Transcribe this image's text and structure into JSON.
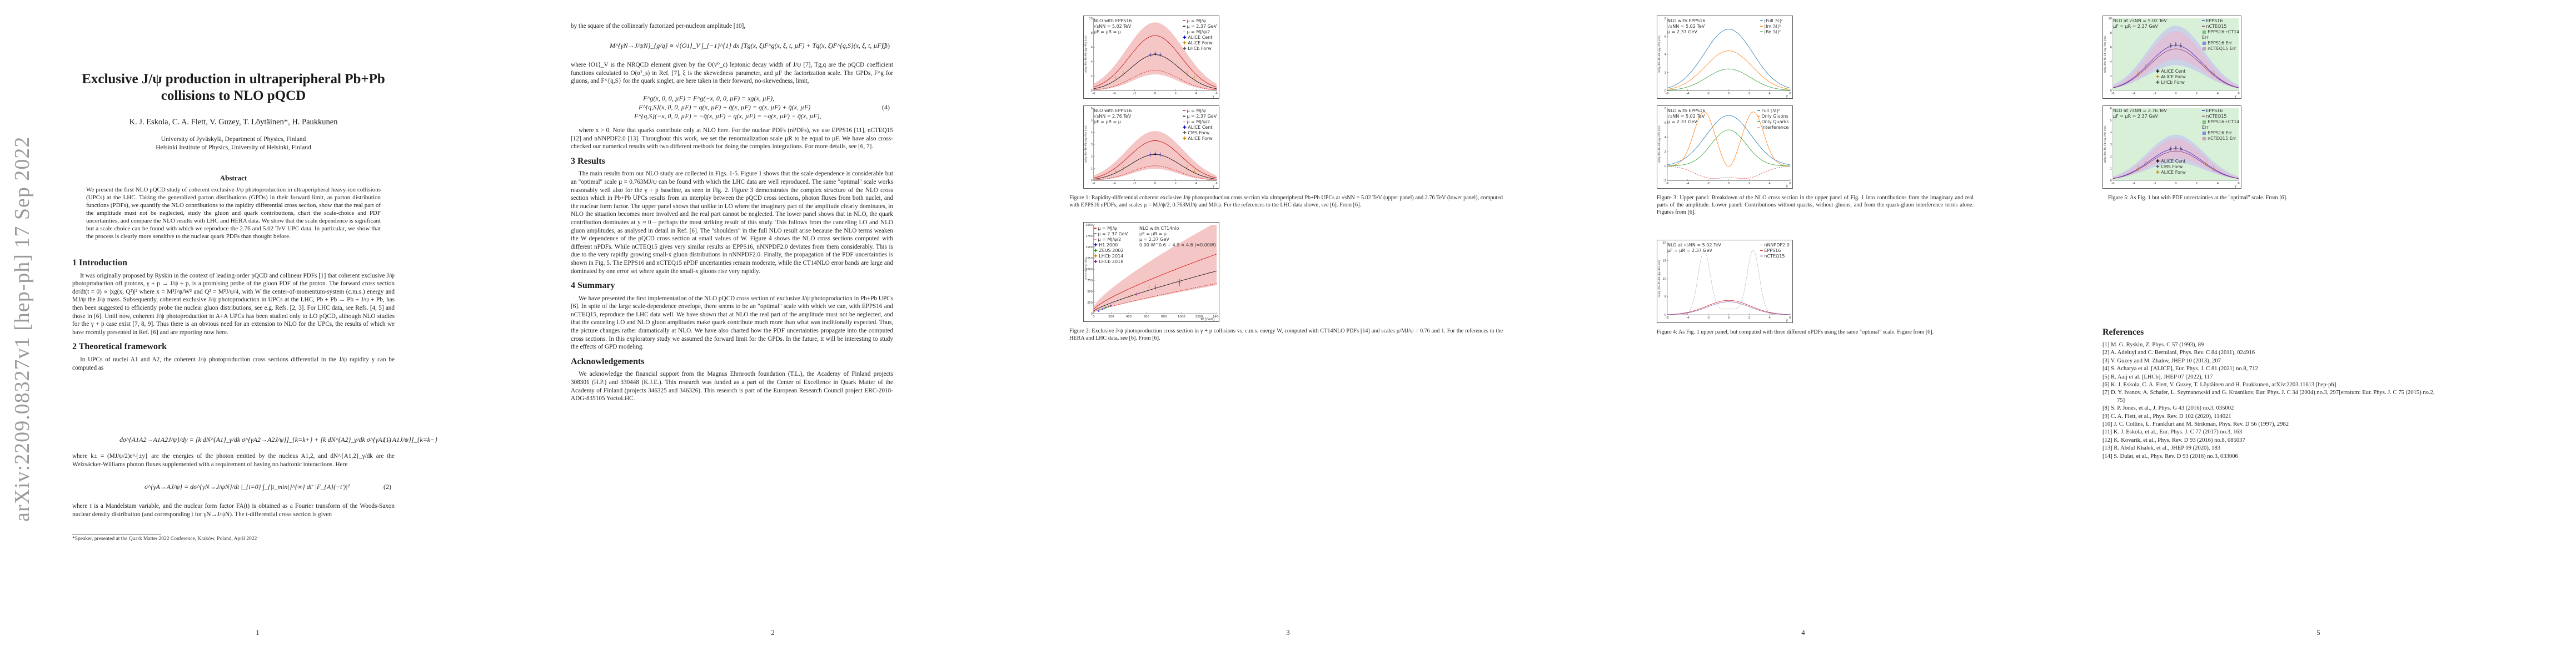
{
  "arxiv_stamp": "arXiv:2209.08327v1  [hep-ph]  17 Sep 2022",
  "page_numbers": [
    "1",
    "2",
    "3",
    "4",
    "5"
  ],
  "title": "Exclusive J/ψ production in ultraperipheral Pb+Pb collisions to NLO pQCD",
  "authors": "K. J. Eskola, C. A. Flett, V. Guzey, T. Löytäinen*, H. Paukkunen",
  "affiliation": [
    "University of Jyväskylä, Department of Physics, Finland",
    "Helsinki Institute of Physics, University of Helsinki, Finland"
  ],
  "abstract_heading": "Abstract",
  "abstract": "We present the first NLO pQCD study of coherent exclusive J/ψ photoproduction in ultraperipheral heavy-ion collisions (UPCs) at the LHC. Taking the generalized parton distributions (GPDs) in their forward limit, as parton distribution functions (PDFs), we quantify the NLO contributions to the rapidity differential cross section, show that the real part of the amplitude must not be neglected, study the gluon and quark contributions, chart the scale-choice and PDF uncertainties, and compare the NLO results with LHC and HERA data. We show that the scale dependence is significant but a scale choice can be found with which we reproduce the 2.76 and 5.02 TeV UPC data. In particular, we show that the process is clearly more sensitive to the nuclear quark PDFs than thought before.",
  "section1_heading": "1   Introduction",
  "section1_text": "It was originally proposed by Ryskin in the context of leading-order pQCD and collinear PDFs [1] that coherent exclusive J/ψ photoproduction off protons, γ + p → J/ψ + p, is a promising probe of the gluon PDF of the proton. The forward cross section dσ/dt(t = 0) ∝ |xg(x, Q²)|² where x = M²J/ψ/W² and Q² = M²J/ψ/4, with W the center-of-momentum-system (c.m.s.) energy and MJ/ψ the J/ψ mass. Subsequently, coherent exclusive J/ψ photoproduction in UPCs at the LHC, Pb + Pb → Pb + J/ψ + Pb, has then been suggested to efficiently probe the nuclear gluon distributions, see e.g. Refs. [2, 3]. For LHC data, see Refs. [4, 5] and those in [6]. Until now, coherent J/ψ photoproduction in A+A UPCs has been studied only to LO pQCD, although NLO studies for the γ + p case exist [7, 8, 9]. Thus there is an obvious need for an extension to NLO for the UPCs, the results of which we have recently presented in Ref. [6] and are reporting now here.",
  "section2_heading": "2   Theoretical framework",
  "section2_text1": "In UPCs of nuclei A1 and A2, the coherent J/ψ photoproduction cross sections differential in the J/ψ rapidity y can be computed as",
  "eq1": "dσ^{A1A2→A1A2J/ψ}/dy = [k dN^{A1}_γ/dk σ^{γA2→A2J/ψ}]_{k=k+} + [k dN^{A2}_γ/dk σ^{γA1→A1J/ψ}]_{k=k−}",
  "eq1_num": "(1)",
  "section2_text2": "where k± = (MJ/ψ/2)e^{±y} are the energies of the photon emitted by the nucleus A1,2, and dN^{A1,2}_γ/dk are the Weizsäcker-Williams photon fluxes supplemented with a requirement of having no hadronic interactions. Here",
  "eq2": "σ^{γA→AJ/ψ} = dσ^{γN→J/ψN}/dt |_{t=0} ∫_{|t_min|}^{∞} dt' |F_{A}(−t')|²",
  "eq2_num": "(2)",
  "section2_text3": "where t is a Mandelstam variable, and the nuclear form factor FA(t) is obtained as a Fourier transform of the Woods-Saxon nuclear density distribution (and corresponding t for γN→J/ψN). The t-differential cross section is given",
  "footnote": "*Speaker, presented at the Quark Matter 2022 Conference, Kraków, Poland, April 2022",
  "p2_text0": "by the square of the collinearly factorized per-nucleon amplitude [10],",
  "eq3": "M^{γN→J/ψN}_{g/q} ∝ √⟨O1⟩_V ∫_{−1}^{1} dx [Tg(x, ξ)F^g(x, ξ, t, µF) + Tq(x, ξ)F^{q,S}(x, ξ, t, µF)]",
  "eq3_num": "(3)",
  "p2_text1": "where ⟨O1⟩_V is the NRQCD element given by the O(v⁰_c) leptonic decay width of J/ψ [7], Tg,q are the pQCD coefficient functions calculated to O(α²_s) in Ref. [7], ξ is the skewedness parameter, and µF the factorization scale. The GPDs, F^g for gluons, and F^{q,S} for the quark singlet, are here taken in their forward, no-skewedness, limit,",
  "eq4a": "F^g(x, 0, 0, µF) = F^g(−x, 0, 0, µF) = xg(x, µF),",
  "eq4b": "F^{q,S}(x, 0, 0, µF) = q(x, µF) + q̄(x, µF) = q(x, µF) + q̄(x, µF)",
  "eq4c": "F^{q,S}(−x, 0, 0, µF) = −q̄(x, µF) − q(x, µF) = −q(x, µF) − q̄(x, µF),",
  "eq4_num": "(4)",
  "p2_text2": "where x > 0. Note that quarks contribute only at NLO here. For the nuclear PDFs (nPDFs), we use EPPS16 [11], nCTEQ15 [12] and nNNPDF2.0 [13]. Throughout this work, we set the renormalization scale µR to be equal to µF. We have also cross-checked our numerical results with two different methods for doing the complex integrations. For more details, see [6, 7].",
  "section3_heading": "3   Results",
  "section3_text": "The main results from our NLO study are collected in Figs. 1-5. Figure 1 shows that the scale dependence is considerable but an \"optimal\" scale µ = 0.763MJ/ψ can be found with which the LHC data are well reproduced. The same \"optimal\" scale works reasonably well also for the γ + p baseline, as seen in Fig. 2. Figure 3 demonstrates the complex structure of the NLO cross section which in Pb+Pb UPCs results from an interplay between the pQCD cross sections, photon fluxes from both nuclei, and the nuclear form factor. The upper panel shows that unlike in LO where the imaginary part of the amplitude clearly dominates, in NLO the situation becomes more involved and the real part cannot be neglected. The lower panel shows that in NLO, the quark contribution dominates at y ≈ 0 – perhaps the most striking result of this study. This follows from the canceling LO and NLO gluon amplitudes, as analysed in detail in Ref. [6]. The \"shoulders\" in the full NLO result arise because the NLO terms weaken the W dependence of the pQCD cross section at small values of W. Figure 4 shows the NLO cross sections computed with different nPDFs. While nCTEQ15 gives very similar results as EPPS16, nNNPDF2.0 deviates from them considerably. This is due to the very rapidly growing small-x gluon distributions in nNNPDF2.0. Finally, the propagation of the PDF uncertainties is shown in Fig. 5. The EPPS16 and nCTEQ15 nPDF uncertainties remain moderate, while the CT14NLO error bands are large and dominated by one error set where again the small-x gluons rise very rapidly.",
  "section4_heading": "4   Summary",
  "section4_text": "We have presented the first implementation of the NLO pQCD cross section of exclusive J/ψ photoproduction in Pb+Pb UPCs [6]. In spite of the large scale-dependence envelope, there seems to be an \"optimal\" scale with which we can, with EPPS16 and nCTEQ15, reproduce the LHC data well. We have shown that at NLO the real part of the amplitude must not be neglected, and that the canceling LO and NLO gluon amplitudes make quark contribute much more than what was traditionally expected. Thus, the picture changes rather dramatically at NLO. We have also charted how the PDF uncertainties propagate into the computed cross sections. In this exploratory study we assumed the forward limit for the GPDs. In the future, it will be interesting to study the effects of GPD modeling.",
  "ack_heading": "Acknowledgements",
  "ack_text": "We acknowledge the financial support from the Magnus Ehrnrooth foundation (T.L.), the Academy of Finland projects 308301 (H.P.) and 330448 (K.J.E.). This research was funded as a part of the Center of Excellence in Quark Matter of the Academy of Finland (projects 346325 and 346326). This research is part of the European Research Council project ERC-2018-ADG-835105 YoctoLHC.",
  "fig1": {
    "top": {
      "info": [
        "NLO with EPPS16",
        "√sNN = 5.02 TeV",
        "µF = µR = µ"
      ],
      "legend": [
        "µ = MJ/ψ",
        "µ = 2.37 GeV",
        "µ = MJ/ψ/2",
        "ALICE Cent",
        "ALICE Forw",
        "LHCb Forw"
      ],
      "ylabel": "dσ/dy (Pb+Pb→Pb+J/ψ+Pb) [mb]",
      "xlabel": "y",
      "xticks": [
        "-6",
        "-4",
        "-2",
        "0",
        "2",
        "4",
        "6"
      ],
      "yticks": [
        "0",
        "2",
        "4",
        "6",
        "8",
        "10"
      ]
    },
    "bottom": {
      "info": [
        "NLO with EPPS16",
        "√sNN = 2.76 TeV",
        "µF = µR = µ"
      ],
      "legend": [
        "µ = MJ/ψ",
        "µ = 2.37 GeV",
        "µ = MJ/ψ/2",
        "ALICE Cent",
        "CMS Forw",
        "ALICE Forw"
      ],
      "ylabel": "dσ/dy (Pb+Pb→Pb+J/ψ+Pb) [mb]",
      "xlabel": "y",
      "xticks": [
        "-6",
        "-4",
        "-2",
        "0",
        "2",
        "4",
        "6"
      ],
      "yticks": [
        "0",
        "1",
        "2",
        "3",
        "4",
        "5",
        "6"
      ]
    },
    "caption": "Figure 1: Rapidity-differential coherent exclusive J/ψ photoproduction cross section via ultraperipheral Pb+Pb UPCs at √sNN = 5.02 TeV (upper panel) and 2.76 TeV (lower panel), computed with EPPS16 nPDFs, and scales µ = MJ/ψ/2, 0.763MJ/ψ and MJ/ψ. For the references to the LHC data shown, see [6]. From [6]."
  },
  "fig2": {
    "info": [
      "NLO with CT14nlo",
      "µF = µR = µ",
      "µ ≈ 2.37 GeV"
    ],
    "legend": [
      "µ = MJ/ψ",
      "µ = 2.37 GeV",
      "µ = MJ/ψ/2",
      "H1 2000",
      "ZEUS 2002",
      "LHCb 2014",
      "LHCb 2018"
    ],
    "fit": "0.00 W^0.6 + 4.9 × 4.6 (≃0.00W)",
    "ylabel": "σ(γ+p→J/ψ+p) [nb]",
    "xlabel": "W [GeV]",
    "xticks": [
      "0",
      "200",
      "400",
      "600",
      "800",
      "1000",
      "1200",
      "1400"
    ],
    "yticks": [
      "0",
      "250",
      "500",
      "750",
      "1000",
      "1250",
      "1500",
      "1750",
      "2000"
    ],
    "caption": "Figure 2: Exclusive J/ψ photoproduction cross section in γ + p collisions vs. c.m.s. energy W, computed with CT14NLO PDFs [14] and scales µ/MJ/ψ = 0.76 and 1. For the references to the HERA and LHC data, see [6]. From [6]."
  },
  "fig3": {
    "top": {
      "info": [
        "NLO with EPPS16",
        "√sNN = 5.02 TeV",
        "µ = 2.37 GeV"
      ],
      "legend": [
        "|Full ℳ|²",
        "|Im ℳ|²",
        "|Re ℳ|²"
      ],
      "ylabel": "dσ/dy (Pb+Pb→Pb+J/ψ+Pb) [mb]",
      "xlabel": "y",
      "xticks": [
        "-6",
        "-4",
        "-2",
        "0",
        "2",
        "4",
        "6"
      ],
      "yticks": [
        "0",
        "2",
        "4",
        "6",
        "8"
      ]
    },
    "bottom": {
      "info": [
        "NLO with EPPS16",
        "√sNN = 5.02 TeV",
        "µ = 2.37 GeV"
      ],
      "legend": [
        "Full |ℳ|²",
        "Only Gluons",
        "Only Quarks",
        "Interference"
      ],
      "ylabel": "dσ/dy (Pb+Pb→Pb+J/ψ+Pb) [mb]",
      "xlabel": "y",
      "xticks": [
        "-6",
        "-4",
        "-2",
        "0",
        "2",
        "4",
        "6"
      ],
      "yticks": [
        "-2",
        "0",
        "2",
        "4",
        "6",
        "8"
      ]
    },
    "caption": "Figure 3: Upper panel: Breakdown of the NLO cross section in the upper panel of Fig. 1 into contributions from the imaginary and real parts of the amplitude. Lower panel: Contributions without quarks, without gluons, and from the quark-gluon interference terms alone. Figures from [6]."
  },
  "fig4": {
    "info": [
      "NLO at √sNN = 5.02 TeV",
      "µF = µR = 2.37 GeV"
    ],
    "legend": [
      "nNNPDF2.0",
      "EPPS16",
      "nCTEQ15"
    ],
    "ylabel": "dσ/dy (Pb+Pb→Pb+J/ψ+Pb) [mb]",
    "xlabel": "y",
    "xticks": [
      "-6",
      "-4",
      "-2",
      "0",
      "2",
      "4",
      "6"
    ],
    "yticks": [
      "0",
      "5",
      "10",
      "15",
      "20"
    ],
    "caption": "Figure 4: As Fig. 1 upper panel, but computed with three different nPDFs using the same \"optimal\" scale. Figure from [6]."
  },
  "fig5": {
    "top": {
      "info": [
        "NLO at √sNN = 5.02 TeV",
        "µF = µR = 2.37 GeV"
      ],
      "legend": [
        "EPPS16",
        "nCTEQ15",
        "EPPS16+CT14 Err",
        "EPPS16 Err",
        "nCTEQ15 Err"
      ],
      "data_legend": [
        "ALICE Cent",
        "ALICE Forw",
        "LHCb Forw"
      ],
      "ylabel": "dσ/dy (Pb+Pb→Pb+J/ψ+Pb) [mb]",
      "xlabel": "y",
      "xticks": [
        "-6",
        "-4",
        "-2",
        "0",
        "2",
        "4",
        "6"
      ],
      "yticks": [
        "0",
        "2",
        "4",
        "6",
        "8",
        "10"
      ]
    },
    "bottom": {
      "info": [
        "NLO at √sNN = 2.76 TeV",
        "µF = µR = 2.37 GeV"
      ],
      "legend": [
        "EPPS16",
        "nCTEQ15",
        "EPPS16+CT14 Err",
        "EPPS16 Err",
        "nCTEQ15 Err"
      ],
      "data_legend": [
        "ALICE Cent",
        "CMS Forw",
        "ALICE Forw"
      ],
      "ylabel": "dσ/dy (Pb+Pb→Pb+J/ψ+Pb) [mb]",
      "xlabel": "y",
      "xticks": [
        "-6",
        "-4",
        "-2",
        "0",
        "2",
        "4",
        "6"
      ],
      "yticks": [
        "0",
        "1",
        "2",
        "3",
        "4",
        "5",
        "6"
      ]
    },
    "caption": "Figure 5: As Fig. 1 but with PDF uncertainties at the \"optimal\" scale. From [6]."
  },
  "refs_heading": "References",
  "references": [
    "[1]  M. G. Ryskin, Z. Phys. C 57 (1993), 89",
    "[2]  A. Adeluyi and C. Bertulani, Phys. Rev. C 84 (2011), 024916",
    "[3]  V. Guzey and M. Zhalov, JHEP 10 (2013), 207",
    "[4]  S. Acharya et al. [ALICE], Eur. Phys. J. C 81 (2021) no.8, 712",
    "[5]  R. Aaij et al. [LHCb], JHEP 07 (2022), 117",
    "[6]  K. J. Eskola, C. A. Flett, V. Guzey, T. Löytäinen and H. Paukkunen, arXiv:2203.11613 [hep-ph]",
    "[7]  D. Y. Ivanov, A. Schafer, L. Szymanowski and G. Krasnikov, Eur. Phys. J. C 34 (2004) no.3, 297[erratum: Eur. Phys. J. C 75 (2015) no.2, 75]",
    "[8]  S. P. Jones, et al., J. Phys. G 43 (2016) no.3, 035002",
    "[9]  C. A. Flett, et al., Phys. Rev. D 102 (2020), 114021",
    "[10]  J. C. Collins, L. Frankfurt and M. Strikman, Phys. Rev. D 56 (1997), 2982",
    "[11]  K. J. Eskola, et al., Eur. Phys. J. C 77 (2017) no.3, 163",
    "[12]  K. Kovarik, et al., Phys. Rev. D 93 (2016) no.8, 085037",
    "[13]  R. Abdul Khalek, et al., JHEP 09 (2020), 183",
    "[14]  S. Dulat, et al., Phys. Rev. D 93 (2016) no.3, 033006"
  ]
}
